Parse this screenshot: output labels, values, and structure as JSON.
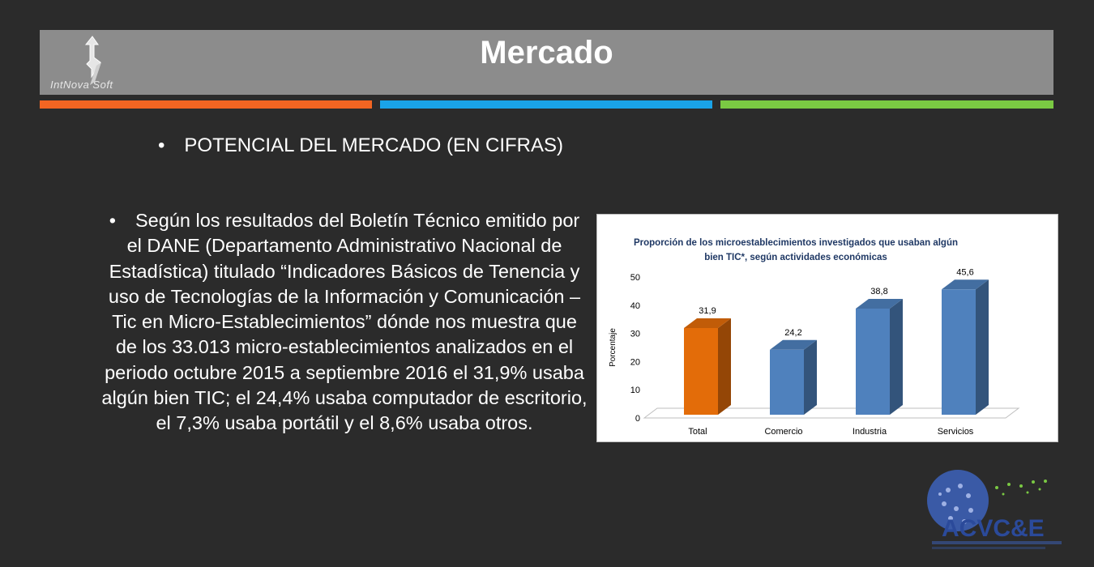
{
  "header": {
    "title": "Mercado",
    "logo_text": "IntNova Soft"
  },
  "accent_colors": {
    "bar1": "#f26522",
    "bar2": "#1aa3e8",
    "bar3": "#7ac943"
  },
  "content": {
    "bullet1": "POTENCIAL DEL MERCADO (EN CIFRAS)",
    "bullet2": "Según los resultados del Boletín Técnico emitido por el DANE (Departamento Administrativo Nacional de Estadística)  titulado “Indicadores Básicos de Tenencia y uso de Tecnologías de la Información y Comunicación – Tic en Micro-Establecimientos” dónde nos muestra que de los 33.013 micro-establecimientos analizados en el periodo octubre 2015 a septiembre 2016 el 31,9% usaba algún bien TIC; el 24,4% usaba computador de escritorio, el 7,3% usaba portátil y el 8,6% usaba otros."
  },
  "chart_data": {
    "type": "bar",
    "title_line1": "Proporción de los microestablecimientos investigados que usaban algún",
    "title_line2": "bien TIC*, según actividades económicas",
    "ylabel": "Porcentaje",
    "xlabel": "",
    "ylim": [
      0,
      50
    ],
    "yticks": [
      "0",
      "10",
      "20",
      "30",
      "40",
      "50"
    ],
    "categories": [
      "Total",
      "Comercio",
      "Industria",
      "Servicios"
    ],
    "values": [
      31.9,
      24.2,
      38.8,
      45.6
    ],
    "value_labels": [
      "31,9",
      "24,2",
      "38,8",
      "45,6"
    ],
    "colors": [
      "#e36c09",
      "#4f81bd",
      "#4f81bd",
      "#4f81bd"
    ],
    "grid": false,
    "legend": "none"
  },
  "footer_logo": {
    "text": "ACVC&E"
  }
}
